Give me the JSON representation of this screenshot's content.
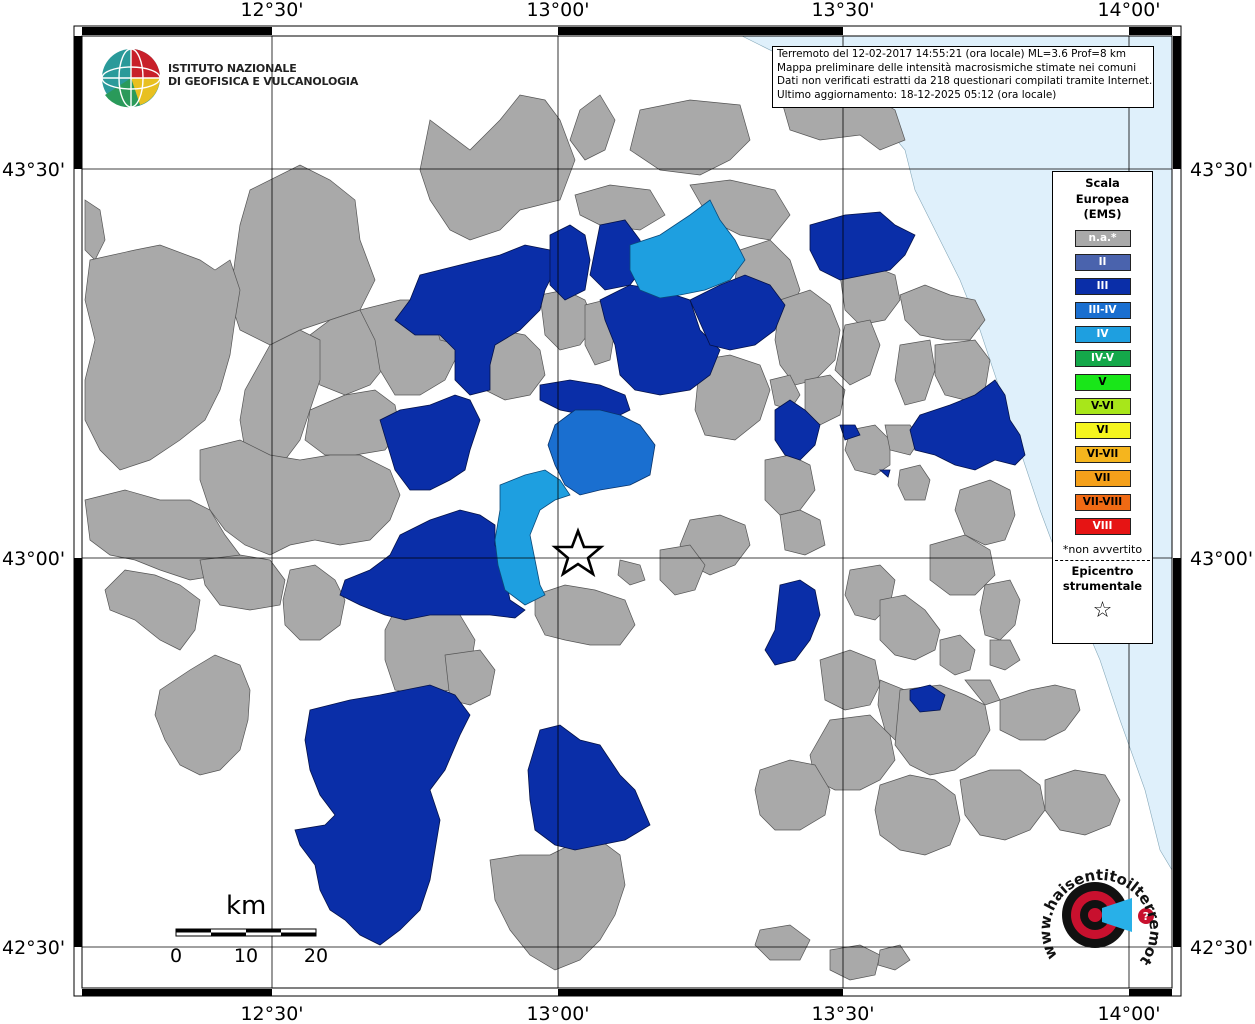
{
  "header": {
    "title": "Terremoto del 12-02-2017 14:55:21 (ora locale) ML=3.6 Prof=8 km",
    "line2": "Mappa preliminare delle intensità macrosismiche stimate nei comuni",
    "line3": "Dati non verificati estratti da 218 questionari compilati tramite Internet.",
    "line4": "Ultimo aggiornamento: 18-12-2025 05:12 (ora locale)"
  },
  "logo": {
    "line1": "ISTITUTO NAZIONALE",
    "line2": "DI GEOFISICA E VULCANOLOGIA",
    "icon": "ingv-globe-icon"
  },
  "axes": {
    "top": [
      "12°30'",
      "13°00'",
      "13°30'",
      "14°00'"
    ],
    "bottom": [
      "12°30'",
      "13°00'",
      "13°30'",
      "14°00'"
    ],
    "left": [
      "43°30'",
      "43°00'",
      "42°30'"
    ],
    "right": [
      "43°30'",
      "43°00'",
      "42°30'"
    ]
  },
  "legend": {
    "title_line1": "Scala",
    "title_line2": "Europea",
    "title_line3": "(EMS)",
    "items": [
      {
        "label": "n.a.*",
        "color": "#a9a9a9",
        "text": "#ffffff"
      },
      {
        "label": "II",
        "color": "#4a63ad",
        "text": "#ffffff"
      },
      {
        "label": "III",
        "color": "#0a2ea8",
        "text": "#ffffff"
      },
      {
        "label": "III-IV",
        "color": "#1a6fd0",
        "text": "#ffffff"
      },
      {
        "label": "IV",
        "color": "#1e9fe0",
        "text": "#ffffff"
      },
      {
        "label": "IV-V",
        "color": "#14a84a",
        "text": "#ffffff"
      },
      {
        "label": "V",
        "color": "#19e619",
        "text": "#000000"
      },
      {
        "label": "V-VI",
        "color": "#a8e61a",
        "text": "#000000"
      },
      {
        "label": "VI",
        "color": "#f5f51e",
        "text": "#000000"
      },
      {
        "label": "VI-VII",
        "color": "#f5b51e",
        "text": "#000000"
      },
      {
        "label": "VII",
        "color": "#f5a01a",
        "text": "#000000"
      },
      {
        "label": "VII-VIII",
        "color": "#f06a14",
        "text": "#000000"
      },
      {
        "label": "VIII",
        "color": "#e61414",
        "text": "#ffffff"
      }
    ],
    "note": "*non avvertito",
    "epicenter_line1": "Epicentro",
    "epicenter_line2": "strumentale"
  },
  "scale_bar": {
    "unit": "km",
    "ticks": [
      "0",
      "10",
      "20"
    ]
  },
  "watermark": {
    "text": "www.haisentitoilterremoto.it"
  },
  "colors": {
    "na": "#a9a9a9",
    "ems3": "#0a2ea8",
    "ems34": "#1a6fd0",
    "ems4": "#1e9fe0",
    "sea": "#dff0fb",
    "grid": "#000000"
  }
}
